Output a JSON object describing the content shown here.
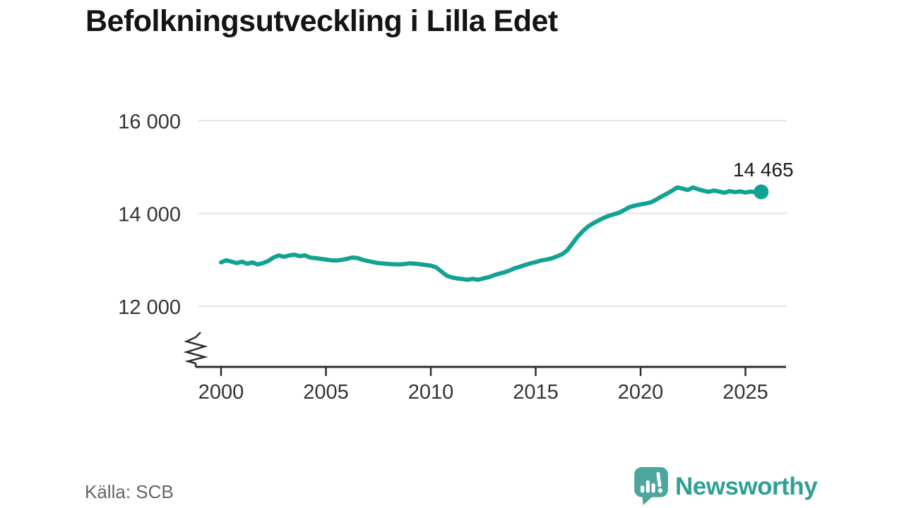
{
  "title": "Befolkningsutveckling i Lilla Edet",
  "source": {
    "text": "Källa: SCB"
  },
  "branding": {
    "name": "Newsworthy"
  },
  "colors": {
    "line": "#12a293",
    "grid": "#e3e3e3",
    "axis": "#2f2f2f",
    "tick_text": "#333333",
    "title_text": "#141414",
    "end_label_text": "#1a1a1a",
    "source_text": "#64666b",
    "logo_bubble": "#4da69d",
    "wordmark": "#2fa096",
    "background": "#ffffff"
  },
  "chart_data": {
    "type": "line",
    "title": "Befolkningsutveckling i Lilla Edet",
    "xlabel": "",
    "ylabel": "",
    "grid": "horizontal",
    "y_axis_break": true,
    "x_start": 2000,
    "x_step": 0.25,
    "x_end": 2025.75,
    "x_ticks": [
      2000,
      2005,
      2010,
      2015,
      2020,
      2025
    ],
    "x_tick_labels": [
      "2000",
      "2005",
      "2010",
      "2015",
      "2020",
      "2025"
    ],
    "y_ticks": [
      16000,
      14000,
      12000
    ],
    "y_tick_labels": [
      "16 000",
      "14 000",
      "12 000"
    ],
    "end_label": "14 465",
    "end_value": 14465,
    "values": [
      12945,
      12990,
      12960,
      12930,
      12960,
      12915,
      12945,
      12900,
      12930,
      12975,
      13050,
      13095,
      13065,
      13095,
      13110,
      13080,
      13095,
      13050,
      13035,
      13020,
      13005,
      12990,
      12985,
      13000,
      13020,
      13050,
      13040,
      13000,
      12975,
      12950,
      12930,
      12920,
      12910,
      12905,
      12900,
      12910,
      12925,
      12915,
      12905,
      12890,
      12875,
      12840,
      12750,
      12660,
      12620,
      12600,
      12585,
      12570,
      12590,
      12570,
      12600,
      12625,
      12665,
      12700,
      12730,
      12770,
      12820,
      12850,
      12890,
      12925,
      12950,
      12985,
      13005,
      13030,
      13070,
      13120,
      13200,
      13350,
      13500,
      13620,
      13720,
      13790,
      13850,
      13905,
      13950,
      13985,
      14020,
      14080,
      14140,
      14170,
      14195,
      14215,
      14240,
      14300,
      14365,
      14425,
      14490,
      14560,
      14535,
      14505,
      14560,
      14520,
      14490,
      14465,
      14495,
      14470,
      14445,
      14480,
      14460,
      14475,
      14450,
      14472,
      14455,
      14465
    ]
  }
}
